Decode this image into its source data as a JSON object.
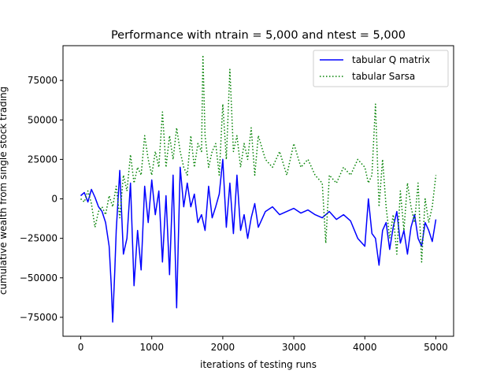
{
  "chart_data": {
    "type": "line",
    "title": "Performance with ntrain = 5,000 and ntest = 5,000",
    "xlabel": "iterations of testing runs",
    "ylabel": "cumulative wealth from single stock trading",
    "xlim": [
      -250,
      5250
    ],
    "ylim": [
      -87000,
      97000
    ],
    "xticks": [
      0,
      1000,
      2000,
      3000,
      4000,
      5000
    ],
    "yticks": [
      -75000,
      -50000,
      -25000,
      0,
      25000,
      50000,
      75000
    ],
    "xtick_labels": [
      "0",
      "1000",
      "2000",
      "3000",
      "4000",
      "5000"
    ],
    "ytick_labels": [
      "−75000",
      "−50000",
      "−25000",
      "0",
      "25000",
      "50000",
      "75000"
    ],
    "grid": false,
    "legend_position": "upper right",
    "series": [
      {
        "name": "tabular Q matrix",
        "color": "#0000ff",
        "style": "solid",
        "x": [
          0,
          50,
          100,
          150,
          200,
          250,
          300,
          350,
          400,
          430,
          450,
          480,
          500,
          550,
          600,
          650,
          700,
          750,
          800,
          850,
          900,
          950,
          1000,
          1050,
          1100,
          1150,
          1200,
          1250,
          1300,
          1350,
          1400,
          1450,
          1500,
          1550,
          1600,
          1650,
          1700,
          1750,
          1800,
          1850,
          1900,
          1950,
          2000,
          2050,
          2100,
          2150,
          2200,
          2250,
          2300,
          2350,
          2400,
          2450,
          2500,
          2600,
          2700,
          2800,
          2900,
          3000,
          3100,
          3200,
          3300,
          3400,
          3500,
          3600,
          3700,
          3800,
          3900,
          4000,
          4050,
          4100,
          4150,
          4200,
          4250,
          4300,
          4350,
          4400,
          4450,
          4500,
          4550,
          4600,
          4650,
          4700,
          4750,
          4800,
          4850,
          4900,
          4950,
          5000
        ],
        "y": [
          2000,
          4000,
          -2000,
          6000,
          1000,
          -5000,
          -8000,
          -15000,
          -30000,
          -55000,
          -78000,
          -45000,
          -20000,
          18000,
          -35000,
          -25000,
          10000,
          -55000,
          -20000,
          -45000,
          8000,
          -15000,
          12000,
          -10000,
          5000,
          -40000,
          2000,
          -48000,
          15000,
          -69000,
          20000,
          -5000,
          10000,
          -5000,
          3000,
          -15000,
          -10000,
          -20000,
          8000,
          -12000,
          -5000,
          3000,
          25000,
          -18000,
          10000,
          -22000,
          15000,
          -20000,
          -10000,
          -25000,
          -12000,
          -3000,
          -18000,
          -8000,
          -5000,
          -10000,
          -8000,
          -6000,
          -9000,
          -7000,
          -10000,
          -12000,
          -8000,
          -13000,
          -10000,
          -14000,
          -25000,
          -30000,
          0,
          -22000,
          -25000,
          -42000,
          -20000,
          -15000,
          -32000,
          -18000,
          -8000,
          -28000,
          -20000,
          -35000,
          -18000,
          -10000,
          -25000,
          -30000,
          -15000,
          -20000,
          -27000,
          -13000
        ]
      },
      {
        "name": "tabular Sarsa",
        "color": "#008000",
        "style": "dotted",
        "x": [
          0,
          50,
          100,
          150,
          200,
          250,
          300,
          350,
          400,
          450,
          500,
          550,
          600,
          650,
          700,
          750,
          800,
          850,
          900,
          950,
          1000,
          1050,
          1100,
          1150,
          1200,
          1250,
          1300,
          1350,
          1400,
          1450,
          1500,
          1550,
          1600,
          1650,
          1700,
          1720,
          1750,
          1800,
          1850,
          1900,
          1950,
          2000,
          2050,
          2100,
          2150,
          2200,
          2250,
          2300,
          2350,
          2400,
          2450,
          2500,
          2600,
          2700,
          2800,
          2900,
          3000,
          3100,
          3200,
          3300,
          3400,
          3450,
          3500,
          3600,
          3700,
          3800,
          3900,
          4000,
          4050,
          4100,
          4150,
          4200,
          4250,
          4300,
          4350,
          4400,
          4450,
          4500,
          4550,
          4600,
          4650,
          4700,
          4750,
          4800,
          4850,
          4900,
          4950,
          5000
        ],
        "y": [
          0,
          -2000,
          5000,
          -3000,
          -18000,
          -8000,
          -5000,
          -10000,
          2000,
          -5000,
          8000,
          -12000,
          15000,
          5000,
          28000,
          10000,
          20000,
          15000,
          40000,
          25000,
          15000,
          30000,
          20000,
          55000,
          20000,
          40000,
          25000,
          45000,
          30000,
          20000,
          15000,
          40000,
          20000,
          35000,
          30000,
          91000,
          40000,
          20000,
          30000,
          35000,
          15000,
          60000,
          25000,
          82000,
          30000,
          40000,
          20000,
          35000,
          25000,
          45000,
          15000,
          40000,
          25000,
          20000,
          30000,
          15000,
          35000,
          20000,
          25000,
          15000,
          10000,
          -28000,
          15000,
          10000,
          20000,
          15000,
          25000,
          20000,
          10000,
          15000,
          60000,
          -5000,
          25000,
          -5000,
          -25000,
          -10000,
          -35000,
          5000,
          -20000,
          10000,
          -5000,
          -15000,
          10000,
          -40000,
          0,
          -15000,
          -5000,
          15000
        ]
      }
    ]
  }
}
